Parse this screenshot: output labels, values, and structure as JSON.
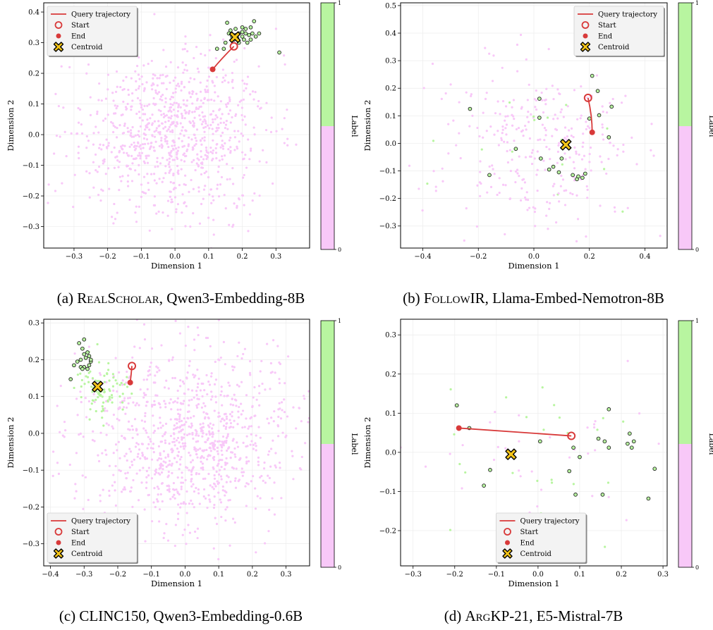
{
  "colors": {
    "label_0": "#f8c8f8",
    "label_1": "#b8f5a0",
    "trajectory": "#d83a3a",
    "centroid_fill": "#f5c518",
    "legend_bg": "#f3f3f3"
  },
  "legend": {
    "trajectory": "Query trajectory",
    "start": "Start",
    "end": "End",
    "centroid": "Centroid"
  },
  "colorbar": {
    "label": "Label",
    "tick_low": "0",
    "tick_high": "1"
  },
  "chart_data": [
    {
      "id": "a",
      "type": "scatter",
      "caption_prefix": "(a) ",
      "caption_dataset": "RealScholar",
      "caption_model": ", Qwen3-Embedding-8B",
      "xlabel": "Dimension 1",
      "ylabel": "Dimension 2",
      "xlim": [
        -0.39,
        0.4
      ],
      "ylim": [
        -0.37,
        0.43
      ],
      "xticks": [
        -0.3,
        -0.2,
        -0.1,
        0.0,
        0.1,
        0.2,
        0.3
      ],
      "yticks": [
        -0.3,
        -0.2,
        -0.1,
        0.0,
        0.1,
        0.2,
        0.3,
        0.4
      ],
      "legend_position": "top-left",
      "grid": true,
      "background": {
        "count": 900,
        "seed": 11,
        "cx": 0.0,
        "cy": 0.0,
        "sx": 0.14,
        "sy": 0.13,
        "frac_label1": 0.0
      },
      "relevant_points": [
        [
          0.17,
          0.32
        ],
        [
          0.175,
          0.31
        ],
        [
          0.18,
          0.325
        ],
        [
          0.185,
          0.315
        ],
        [
          0.19,
          0.33
        ],
        [
          0.2,
          0.32
        ],
        [
          0.205,
          0.31
        ],
        [
          0.21,
          0.33
        ],
        [
          0.22,
          0.325
        ],
        [
          0.165,
          0.34
        ],
        [
          0.19,
          0.3
        ],
        [
          0.2,
          0.335
        ],
        [
          0.225,
          0.31
        ],
        [
          0.15,
          0.3
        ],
        [
          0.16,
          0.33
        ],
        [
          0.23,
          0.33
        ],
        [
          0.215,
          0.3
        ],
        [
          0.21,
          0.345
        ],
        [
          0.24,
          0.32
        ],
        [
          0.25,
          0.33
        ],
        [
          0.225,
          0.35
        ],
        [
          0.2,
          0.35
        ],
        [
          0.155,
          0.365
        ],
        [
          0.235,
          0.37
        ],
        [
          0.125,
          0.28
        ],
        [
          0.145,
          0.28
        ],
        [
          0.31,
          0.268
        ],
        [
          0.18,
          0.345
        ]
      ],
      "trajectory": [
        [
          0.175,
          0.288
        ],
        [
          0.14,
          0.25
        ],
        [
          0.112,
          0.213
        ]
      ],
      "start": [
        0.175,
        0.288
      ],
      "end": [
        0.112,
        0.213
      ],
      "centroid": [
        0.178,
        0.318
      ]
    },
    {
      "id": "b",
      "type": "scatter",
      "caption_prefix": "(b) ",
      "caption_dataset": "FollowIR",
      "caption_model": ", Llama-Embed-Nemotron-8B",
      "xlabel": "Dimension 1",
      "ylabel": "Dimension 2",
      "xlim": [
        -0.48,
        0.48
      ],
      "ylim": [
        -0.38,
        0.51
      ],
      "xticks": [
        -0.4,
        -0.2,
        0.0,
        0.2,
        0.4
      ],
      "yticks": [
        -0.3,
        -0.2,
        -0.1,
        0.0,
        0.1,
        0.2,
        0.3,
        0.4,
        0.5
      ],
      "legend_position": "top-right",
      "grid": true,
      "background": {
        "count": 320,
        "seed": 23,
        "cx": 0.02,
        "cy": -0.02,
        "sx": 0.17,
        "sy": 0.15,
        "frac_label1": 0.04
      },
      "relevant_points": [
        [
          -0.23,
          0.125
        ],
        [
          -0.16,
          -0.115
        ],
        [
          -0.065,
          -0.02
        ],
        [
          0.02,
          0.093
        ],
        [
          0.02,
          0.162
        ],
        [
          0.025,
          -0.055
        ],
        [
          0.055,
          -0.095
        ],
        [
          0.07,
          -0.085
        ],
        [
          0.09,
          -0.105
        ],
        [
          0.1,
          -0.055
        ],
        [
          0.11,
          -0.01
        ],
        [
          0.14,
          -0.115
        ],
        [
          0.155,
          -0.13
        ],
        [
          0.16,
          -0.12
        ],
        [
          0.175,
          -0.125
        ],
        [
          0.185,
          -0.11
        ],
        [
          0.21,
          0.245
        ],
        [
          0.2,
          0.09
        ],
        [
          0.23,
          0.19
        ],
        [
          0.235,
          0.102
        ],
        [
          0.27,
          0.022
        ],
        [
          0.28,
          0.133
        ]
      ],
      "trajectory": [
        [
          0.195,
          0.165
        ],
        [
          0.21,
          0.1
        ],
        [
          0.21,
          0.04
        ]
      ],
      "start": [
        0.195,
        0.165
      ],
      "end": [
        0.21,
        0.04
      ],
      "centroid": [
        0.115,
        -0.005
      ]
    },
    {
      "id": "c",
      "type": "scatter",
      "caption_prefix": "(c) ",
      "caption_dataset": "CLINC150",
      "caption_model": ", Qwen3-Embedding-0.6B",
      "xlabel": "Dimension 1",
      "ylabel": "Dimension 2",
      "xlim": [
        -0.42,
        0.37
      ],
      "ylim": [
        -0.36,
        0.31
      ],
      "xticks": [
        -0.4,
        -0.3,
        -0.2,
        -0.1,
        0.0,
        0.1,
        0.2,
        0.3
      ],
      "yticks": [
        -0.3,
        -0.2,
        -0.1,
        0.0,
        0.1,
        0.2,
        0.3
      ],
      "legend_position": "bottom-left",
      "grid": true,
      "background": {
        "count": 1000,
        "seed": 37,
        "cx": 0.02,
        "cy": -0.02,
        "sx": 0.16,
        "sy": 0.12,
        "frac_label1": 0.0,
        "green_cluster": {
          "count": 90,
          "cx": -0.25,
          "cy": 0.12,
          "sx": 0.035,
          "sy": 0.04
        }
      },
      "relevant_points": [
        [
          -0.315,
          0.245
        ],
        [
          -0.3,
          0.255
        ],
        [
          -0.305,
          0.23
        ],
        [
          -0.29,
          0.22
        ],
        [
          -0.3,
          0.215
        ],
        [
          -0.31,
          0.2
        ],
        [
          -0.32,
          0.195
        ],
        [
          -0.295,
          0.205
        ],
        [
          -0.285,
          0.21
        ],
        [
          -0.28,
          0.195
        ],
        [
          -0.3,
          0.18
        ],
        [
          -0.29,
          0.175
        ],
        [
          -0.285,
          0.185
        ],
        [
          -0.31,
          0.18
        ],
        [
          -0.33,
          0.185
        ],
        [
          -0.305,
          0.175
        ],
        [
          -0.34,
          0.147
        ],
        [
          -0.28,
          0.2
        ]
      ],
      "trajectory": [
        [
          -0.158,
          0.183
        ],
        [
          -0.16,
          0.16
        ],
        [
          -0.163,
          0.138
        ]
      ],
      "start": [
        -0.158,
        0.183
      ],
      "end": [
        -0.163,
        0.138
      ],
      "centroid": [
        -0.26,
        0.127
      ]
    },
    {
      "id": "d",
      "type": "scatter",
      "caption_prefix": "(d) ",
      "caption_dataset": "ArgKP-21",
      "caption_model": ", E5-Mistral-7B",
      "xlabel": "Dimension 1",
      "ylabel": "Dimension 2",
      "xlim": [
        -0.33,
        0.31
      ],
      "ylim": [
        -0.29,
        0.34
      ],
      "xticks": [
        -0.3,
        -0.2,
        -0.1,
        0.0,
        0.1,
        0.2,
        0.3
      ],
      "yticks": [
        -0.2,
        -0.1,
        0.0,
        0.1,
        0.2,
        0.3
      ],
      "legend_position": "bottom-center",
      "grid": true,
      "background": {
        "count": 60,
        "seed": 53,
        "cx": 0.0,
        "cy": 0.0,
        "sx": 0.15,
        "sy": 0.12,
        "frac_label1": 0.45
      },
      "relevant_points": [
        [
          -0.195,
          0.12
        ],
        [
          -0.165,
          0.062
        ],
        [
          -0.115,
          -0.045
        ],
        [
          -0.13,
          -0.085
        ],
        [
          0.005,
          0.028
        ],
        [
          0.085,
          0.012
        ],
        [
          0.1,
          -0.012
        ],
        [
          0.075,
          -0.048
        ],
        [
          0.09,
          -0.108
        ],
        [
          0.17,
          0.11
        ],
        [
          0.145,
          0.035
        ],
        [
          0.16,
          0.028
        ],
        [
          0.17,
          0.012
        ],
        [
          0.22,
          0.048
        ],
        [
          0.215,
          0.022
        ],
        [
          0.23,
          0.028
        ],
        [
          0.225,
          0.012
        ],
        [
          0.155,
          -0.108
        ],
        [
          0.265,
          -0.118
        ],
        [
          0.28,
          -0.042
        ]
      ],
      "trajectory": [
        [
          0.08,
          0.042
        ],
        [
          -0.05,
          0.052
        ],
        [
          -0.19,
          0.062
        ]
      ],
      "start": [
        0.08,
        0.042
      ],
      "end": [
        -0.19,
        0.062
      ],
      "centroid": [
        -0.065,
        -0.005
      ]
    }
  ]
}
